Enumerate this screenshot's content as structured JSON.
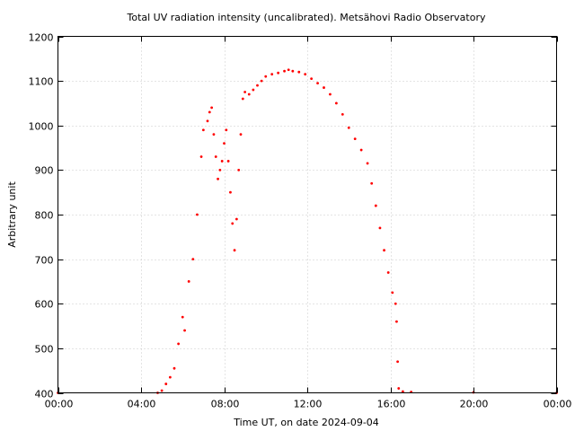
{
  "chart_data": {
    "type": "scatter",
    "title": "Total UV radiation intensity (uncalibrated). Metsähovi Radio Observatory",
    "xlabel": "Time UT, on date 2024-09-04",
    "ylabel": "Arbitrary unit",
    "xlim": [
      0,
      24
    ],
    "ylim": [
      400,
      1200
    ],
    "x_ticks": [
      0,
      4,
      8,
      12,
      16,
      20,
      24
    ],
    "x_tick_labels": [
      "00:00",
      "04:00",
      "08:00",
      "12:00",
      "16:00",
      "20:00",
      "00:00"
    ],
    "y_ticks": [
      400,
      500,
      600,
      700,
      800,
      900,
      1000,
      1100,
      1200
    ],
    "grid": true,
    "marker_color": "#ff0000",
    "series": [
      {
        "x": [
          0.0,
          4.8,
          5.0,
          5.2,
          5.4,
          5.6,
          5.8,
          6.0,
          6.1,
          6.3,
          6.5,
          6.7,
          6.9,
          7.0,
          7.2,
          7.3,
          7.4,
          7.5,
          7.6,
          7.7,
          7.8,
          7.9,
          8.0,
          8.1,
          8.2,
          8.3,
          8.4,
          8.5,
          8.6,
          8.7,
          8.8,
          8.9,
          9.0,
          9.2,
          9.4,
          9.6,
          9.8,
          10.0,
          10.3,
          10.6,
          10.9,
          11.1,
          11.3,
          11.6,
          11.9,
          12.2,
          12.5,
          12.8,
          13.1,
          13.4,
          13.7,
          14.0,
          14.3,
          14.6,
          14.9,
          15.1,
          15.3,
          15.5,
          15.7,
          15.9,
          16.1,
          16.25,
          16.3,
          16.35,
          16.4,
          16.6,
          17.0,
          20.0,
          24.0
        ],
        "y": [
          400,
          400,
          405,
          420,
          435,
          455,
          510,
          570,
          540,
          650,
          700,
          800,
          930,
          990,
          1010,
          1030,
          1040,
          980,
          930,
          880,
          900,
          920,
          960,
          990,
          920,
          850,
          780,
          720,
          790,
          900,
          980,
          1060,
          1075,
          1070,
          1080,
          1090,
          1100,
          1110,
          1115,
          1118,
          1122,
          1125,
          1122,
          1120,
          1115,
          1105,
          1095,
          1085,
          1070,
          1050,
          1025,
          995,
          970,
          945,
          915,
          870,
          820,
          770,
          720,
          670,
          625,
          600,
          560,
          470,
          410,
          403,
          402,
          401,
          400
        ]
      }
    ]
  }
}
